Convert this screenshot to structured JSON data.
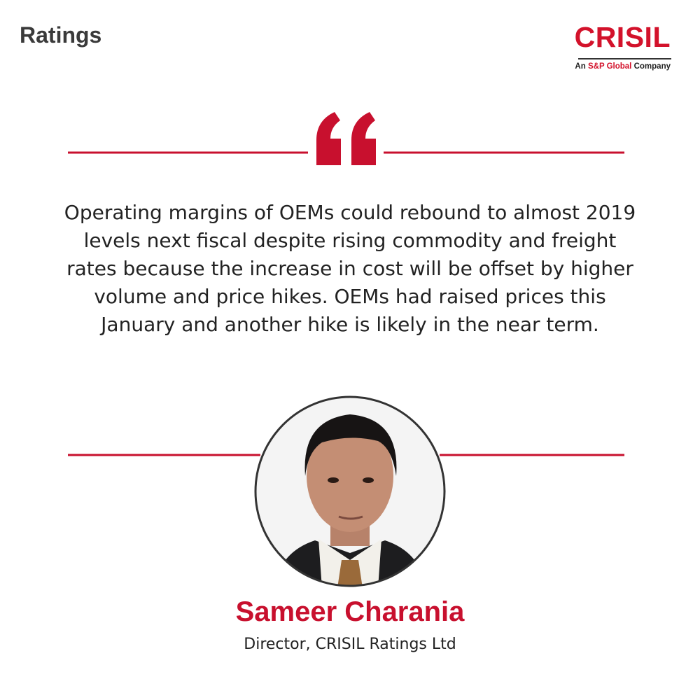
{
  "header": {
    "section": "Ratings"
  },
  "logo": {
    "name": "CRISIL",
    "tagline_prefix": "An",
    "tagline_highlight": "S&P Global",
    "tagline_suffix": "Company"
  },
  "quote": {
    "lines": [
      "Operating margins of OEMs could rebound to almost 2019",
      "levels next fiscal despite rising commodity and freight",
      "rates because the increase in cost will be offset by higher",
      "volume and price hikes. OEMs had raised prices this",
      "January and another hike is likely in the near term."
    ]
  },
  "person": {
    "name": "Sameer Charania",
    "title": "Director, CRISIL Ratings Ltd"
  }
}
